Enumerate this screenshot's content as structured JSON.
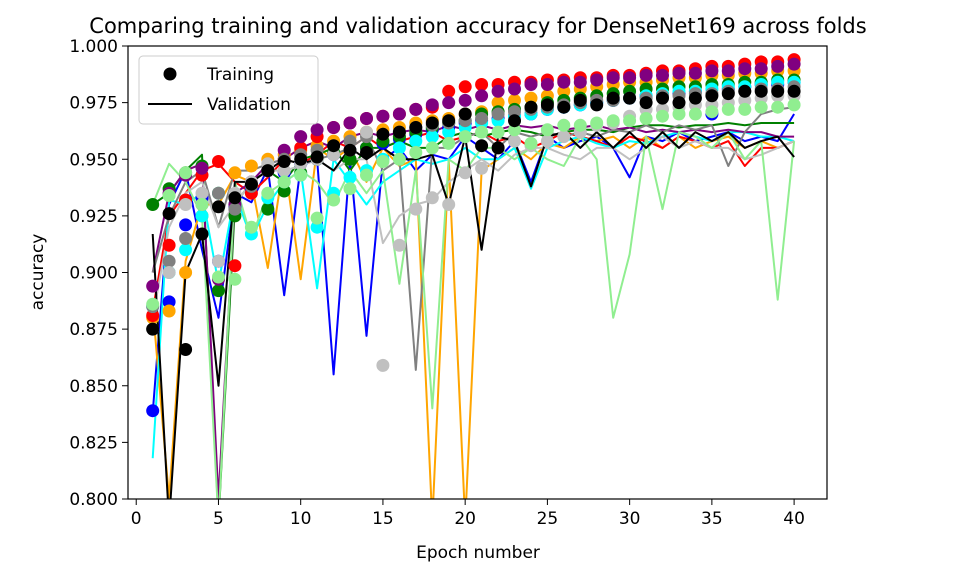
{
  "chart_data": {
    "type": "line",
    "title": "Comparing training and validation accuracy for DenseNet169 across folds",
    "xlabel": "Epoch number",
    "ylabel": "accuracy",
    "xlim": [
      -0.5,
      42
    ],
    "ylim": [
      0.8,
      1.0
    ],
    "xticks": [
      "0",
      "5",
      "10",
      "15",
      "20",
      "25",
      "30",
      "35",
      "40"
    ],
    "yticks": [
      "0.800",
      "0.825",
      "0.850",
      "0.875",
      "0.900",
      "0.925",
      "0.950",
      "0.975",
      "1.000"
    ],
    "grid": false,
    "legend": {
      "placement": "top-left",
      "training_label": "Training",
      "validation_label": "Validation"
    },
    "series": [
      {
        "color": "#0000ff",
        "train": [
          0.839,
          0.887,
          0.921,
          0.933,
          0.905,
          0.929,
          0.937,
          0.945,
          0.944,
          0.948,
          0.95,
          0.952,
          0.954,
          0.955,
          0.957,
          0.959,
          0.961,
          0.963,
          0.964,
          0.966,
          0.967,
          0.968,
          0.969,
          0.97,
          0.972,
          0.973,
          0.974,
          0.975,
          0.976,
          0.977,
          0.978,
          0.978,
          0.979,
          0.98,
          0.97,
          0.981,
          0.982,
          0.983,
          0.983,
          0.984
        ],
        "val": [
          0.838,
          0.93,
          0.945,
          0.91,
          0.88,
          0.935,
          0.931,
          0.946,
          0.89,
          0.947,
          0.95,
          0.855,
          0.95,
          0.872,
          0.95,
          0.955,
          0.945,
          0.952,
          0.95,
          0.96,
          0.955,
          0.95,
          0.958,
          0.94,
          0.96,
          0.955,
          0.958,
          0.96,
          0.955,
          0.942,
          0.96,
          0.958,
          0.962,
          0.958,
          0.96,
          0.962,
          0.958,
          0.96,
          0.958,
          0.97
        ]
      },
      {
        "color": "#ffa500",
        "train": [
          0.88,
          0.883,
          0.9,
          0.925,
          0.935,
          0.944,
          0.947,
          0.95,
          0.952,
          0.954,
          0.956,
          0.958,
          0.96,
          0.962,
          0.963,
          0.964,
          0.966,
          0.967,
          0.968,
          0.97,
          0.971,
          0.975,
          0.976,
          0.977,
          0.978,
          0.98,
          0.981,
          0.982,
          0.983,
          0.984,
          0.984,
          0.985,
          0.986,
          0.986,
          0.987,
          0.987,
          0.988,
          0.988,
          0.989,
          0.989
        ],
        "val": [
          0.885,
          0.8,
          0.905,
          0.93,
          0.93,
          0.943,
          0.94,
          0.902,
          0.95,
          0.897,
          0.955,
          0.95,
          0.955,
          0.94,
          0.955,
          0.947,
          0.95,
          0.79,
          0.95,
          0.79,
          0.945,
          0.95,
          0.955,
          0.95,
          0.957,
          0.955,
          0.96,
          0.958,
          0.96,
          0.955,
          0.96,
          0.955,
          0.96,
          0.955,
          0.958,
          0.96,
          0.955,
          0.958,
          0.955,
          0.958
        ]
      },
      {
        "color": "#ff0000",
        "train": [
          0.881,
          0.912,
          0.932,
          0.943,
          0.949,
          0.903,
          0.935,
          0.945,
          0.95,
          0.955,
          0.96,
          0.964,
          0.966,
          0.968,
          0.969,
          0.97,
          0.972,
          0.973,
          0.98,
          0.982,
          0.983,
          0.983,
          0.984,
          0.984,
          0.985,
          0.985,
          0.986,
          0.986,
          0.987,
          0.987,
          0.988,
          0.989,
          0.989,
          0.99,
          0.991,
          0.991,
          0.992,
          0.993,
          0.993,
          0.994
        ],
        "val": [
          0.883,
          0.925,
          0.935,
          0.945,
          0.948,
          0.94,
          0.935,
          0.942,
          0.95,
          0.948,
          0.952,
          0.958,
          0.955,
          0.96,
          0.955,
          0.958,
          0.96,
          0.962,
          0.958,
          0.96,
          0.962,
          0.958,
          0.96,
          0.955,
          0.958,
          0.962,
          0.96,
          0.958,
          0.955,
          0.96,
          0.958,
          0.955,
          0.96,
          0.958,
          0.955,
          0.958,
          0.947,
          0.955,
          0.955,
          0.958
        ]
      },
      {
        "color": "#008000",
        "train": [
          0.93,
          0.937,
          0.944,
          0.947,
          0.892,
          0.925,
          0.939,
          0.928,
          0.936,
          0.944,
          0.95,
          0.953,
          0.95,
          0.955,
          0.958,
          0.96,
          0.962,
          0.964,
          0.966,
          0.967,
          0.97,
          0.971,
          0.972,
          0.973,
          0.975,
          0.976,
          0.977,
          0.978,
          0.979,
          0.98,
          0.981,
          0.981,
          0.982,
          0.982,
          0.983,
          0.983,
          0.984,
          0.984,
          0.985,
          0.985
        ],
        "val": [
          0.93,
          0.935,
          0.945,
          0.952,
          0.79,
          0.93,
          0.94,
          0.945,
          0.94,
          0.95,
          0.952,
          0.955,
          0.945,
          0.955,
          0.955,
          0.958,
          0.955,
          0.955,
          0.96,
          0.962,
          0.96,
          0.962,
          0.963,
          0.962,
          0.96,
          0.962,
          0.963,
          0.963,
          0.962,
          0.964,
          0.965,
          0.965,
          0.964,
          0.965,
          0.965,
          0.966,
          0.965,
          0.966,
          0.966,
          0.966
        ]
      },
      {
        "color": "#00ffff",
        "train": [
          0.885,
          0.9,
          0.91,
          0.925,
          0.935,
          0.93,
          0.917,
          0.933,
          0.94,
          0.943,
          0.92,
          0.935,
          0.942,
          0.945,
          0.95,
          0.955,
          0.958,
          0.96,
          0.962,
          0.964,
          0.966,
          0.967,
          0.969,
          0.97,
          0.972,
          0.973,
          0.974,
          0.975,
          0.976,
          0.977,
          0.978,
          0.979,
          0.98,
          0.98,
          0.981,
          0.982,
          0.982,
          0.983,
          0.984,
          0.984
        ],
        "val": [
          0.818,
          0.932,
          0.93,
          0.935,
          0.895,
          0.935,
          0.915,
          0.93,
          0.94,
          0.945,
          0.893,
          0.95,
          0.94,
          0.93,
          0.94,
          0.945,
          0.95,
          0.948,
          0.95,
          0.955,
          0.95,
          0.95,
          0.955,
          0.937,
          0.955,
          0.958,
          0.96,
          0.957,
          0.955,
          0.958,
          0.957,
          0.96,
          0.962,
          0.96,
          0.958,
          0.962,
          0.962,
          0.96,
          0.96,
          0.958
        ]
      },
      {
        "color": "#800080",
        "train": [
          0.894,
          0.935,
          0.943,
          0.946,
          0.897,
          0.93,
          0.94,
          0.945,
          0.954,
          0.96,
          0.963,
          0.964,
          0.966,
          0.968,
          0.969,
          0.97,
          0.972,
          0.974,
          0.975,
          0.976,
          0.978,
          0.98,
          0.981,
          0.983,
          0.983,
          0.984,
          0.984,
          0.985,
          0.986,
          0.986,
          0.987,
          0.987,
          0.988,
          0.988,
          0.989,
          0.989,
          0.99,
          0.99,
          0.991,
          0.992
        ],
        "val": [
          0.9,
          0.935,
          0.945,
          0.948,
          0.8,
          0.935,
          0.94,
          0.948,
          0.95,
          0.955,
          0.958,
          0.955,
          0.96,
          0.962,
          0.96,
          0.962,
          0.963,
          0.962,
          0.965,
          0.963,
          0.965,
          0.963,
          0.965,
          0.964,
          0.965,
          0.963,
          0.964,
          0.965,
          0.963,
          0.964,
          0.962,
          0.963,
          0.962,
          0.963,
          0.962,
          0.963,
          0.962,
          0.962,
          0.96,
          0.96
        ]
      },
      {
        "color": "#808080",
        "train": [
          0.885,
          0.905,
          0.915,
          0.93,
          0.935,
          0.928,
          0.938,
          0.945,
          0.95,
          0.952,
          0.954,
          0.956,
          0.958,
          0.96,
          0.961,
          0.962,
          0.964,
          0.965,
          0.966,
          0.967,
          0.968,
          0.97,
          0.971,
          0.972,
          0.973,
          0.974,
          0.975,
          0.976,
          0.976,
          0.977,
          0.977,
          0.978,
          0.978,
          0.979,
          0.979,
          0.98,
          0.98,
          0.981,
          0.981,
          0.982
        ],
        "val": [
          0.9,
          0.925,
          0.94,
          0.945,
          0.92,
          0.945,
          0.945,
          0.948,
          0.95,
          0.948,
          0.95,
          0.952,
          0.955,
          0.96,
          0.945,
          0.95,
          0.857,
          0.955,
          0.955,
          0.96,
          0.962,
          0.955,
          0.962,
          0.96,
          0.962,
          0.96,
          0.962,
          0.96,
          0.963,
          0.962,
          0.965,
          0.962,
          0.965,
          0.963,
          0.965,
          0.947,
          0.962,
          0.97,
          0.972,
          0.973
        ]
      },
      {
        "color": "#c0c0c0",
        "train": [
          0.875,
          0.9,
          0.93,
          0.935,
          0.905,
          0.935,
          0.94,
          0.948,
          0.945,
          0.948,
          0.95,
          0.952,
          0.954,
          0.962,
          0.859,
          0.912,
          0.928,
          0.933,
          0.93,
          0.944,
          0.946,
          0.955,
          0.958,
          0.956,
          0.958,
          0.96,
          0.962,
          0.965,
          0.966,
          0.969,
          0.972,
          0.972,
          0.973,
          0.974,
          0.974,
          0.975,
          0.976,
          0.977,
          0.978,
          0.978
        ],
        "val": [
          0.88,
          0.92,
          0.935,
          0.94,
          0.92,
          0.93,
          0.94,
          0.945,
          0.945,
          0.947,
          0.95,
          0.945,
          0.95,
          0.95,
          0.913,
          0.925,
          0.93,
          0.932,
          0.94,
          0.945,
          0.95,
          0.945,
          0.952,
          0.955,
          0.955,
          0.952,
          0.95,
          0.955,
          0.955,
          0.95,
          0.955,
          0.96,
          0.955,
          0.958,
          0.955,
          0.955,
          0.95,
          0.952,
          0.955,
          0.958
        ]
      },
      {
        "color": "#90ee90",
        "train": [
          0.886,
          0.934,
          0.944,
          0.93,
          0.898,
          0.897,
          0.92,
          0.935,
          0.94,
          0.943,
          0.924,
          0.932,
          0.937,
          0.943,
          0.949,
          0.95,
          0.953,
          0.955,
          0.957,
          0.96,
          0.962,
          0.962,
          0.963,
          0.957,
          0.963,
          0.965,
          0.965,
          0.966,
          0.967,
          0.967,
          0.968,
          0.969,
          0.97,
          0.97,
          0.971,
          0.972,
          0.972,
          0.973,
          0.973,
          0.974
        ],
        "val": [
          0.93,
          0.948,
          0.94,
          0.925,
          0.79,
          0.94,
          0.915,
          0.935,
          0.94,
          0.945,
          0.94,
          0.93,
          0.945,
          0.935,
          0.945,
          0.895,
          0.945,
          0.84,
          0.95,
          0.945,
          0.955,
          0.955,
          0.95,
          0.955,
          0.95,
          0.947,
          0.96,
          0.95,
          0.88,
          0.908,
          0.96,
          0.928,
          0.962,
          0.96,
          0.955,
          0.962,
          0.95,
          0.958,
          0.888,
          0.958
        ]
      },
      {
        "color": "#000000",
        "train": [
          0.875,
          0.926,
          0.866,
          0.917,
          0.929,
          0.933,
          0.939,
          0.945,
          0.949,
          0.95,
          0.951,
          0.956,
          0.954,
          0.953,
          0.961,
          0.962,
          0.964,
          0.966,
          0.967,
          0.97,
          0.956,
          0.955,
          0.967,
          0.973,
          0.974,
          0.973,
          0.976,
          0.974,
          0.977,
          0.977,
          0.975,
          0.977,
          0.975,
          0.977,
          0.978,
          0.979,
          0.98,
          0.98,
          0.98,
          0.98
        ],
        "val": [
          0.917,
          0.79,
          0.9,
          0.917,
          0.85,
          0.94,
          0.94,
          0.945,
          0.95,
          0.948,
          0.95,
          0.945,
          0.955,
          0.95,
          0.955,
          0.95,
          0.95,
          0.952,
          0.93,
          0.96,
          0.91,
          0.96,
          0.958,
          0.938,
          0.96,
          0.962,
          0.955,
          0.962,
          0.955,
          0.962,
          0.955,
          0.962,
          0.955,
          0.962,
          0.958,
          0.962,
          0.955,
          0.958,
          0.96,
          0.951
        ]
      }
    ]
  }
}
